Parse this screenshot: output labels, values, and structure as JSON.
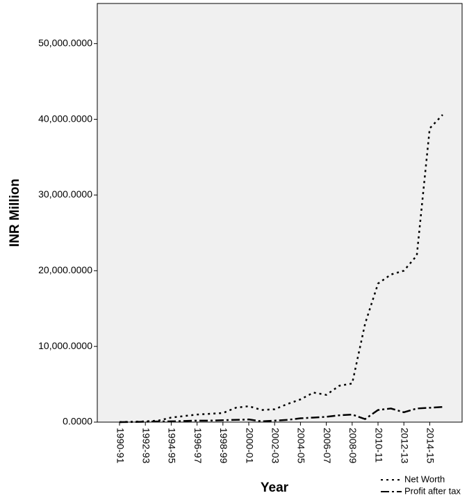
{
  "chart_data": {
    "type": "line",
    "x_label": "Year",
    "y_label": "INR Million",
    "categories": [
      "1990-91",
      null,
      "1992-93",
      null,
      "1994-95",
      null,
      "1996-97",
      null,
      "1998-99",
      null,
      "2000-01",
      null,
      "2002-03",
      null,
      "2004-05",
      null,
      "2006-07",
      null,
      "2008-09",
      null,
      "2010-11",
      null,
      "2012-13",
      null,
      "2014-15",
      null
    ],
    "series": [
      {
        "name": "Net Worth",
        "color": "#000000",
        "style": "dotted",
        "values": [
          0,
          50,
          100,
          200,
          600,
          800,
          1000,
          1100,
          1200,
          1900,
          2100,
          1600,
          1700,
          2400,
          3000,
          3900,
          3600,
          4800,
          5100,
          13000,
          18300,
          19500,
          20000,
          22000,
          38800,
          40600
        ]
      },
      {
        "name": "Profit after tax",
        "color": "#000000",
        "style": "dashdot",
        "values": [
          0,
          20,
          50,
          80,
          100,
          150,
          200,
          200,
          250,
          300,
          350,
          100,
          200,
          300,
          500,
          600,
          700,
          900,
          1000,
          400,
          1600,
          1800,
          1300,
          1800,
          1900,
          2000
        ]
      }
    ],
    "ylim": [
      0,
      55300
    ],
    "yticks": [
      {
        "value": 0,
        "label": "0.0000"
      },
      {
        "value": 10000,
        "label": "10,000.0000"
      },
      {
        "value": 20000,
        "label": "20,000.0000"
      },
      {
        "value": 30000,
        "label": "30,000.0000"
      },
      {
        "value": 40000,
        "label": "40,000.0000"
      },
      {
        "value": 50000,
        "label": "50,000.0000"
      }
    ],
    "legend": "bottom-right"
  }
}
